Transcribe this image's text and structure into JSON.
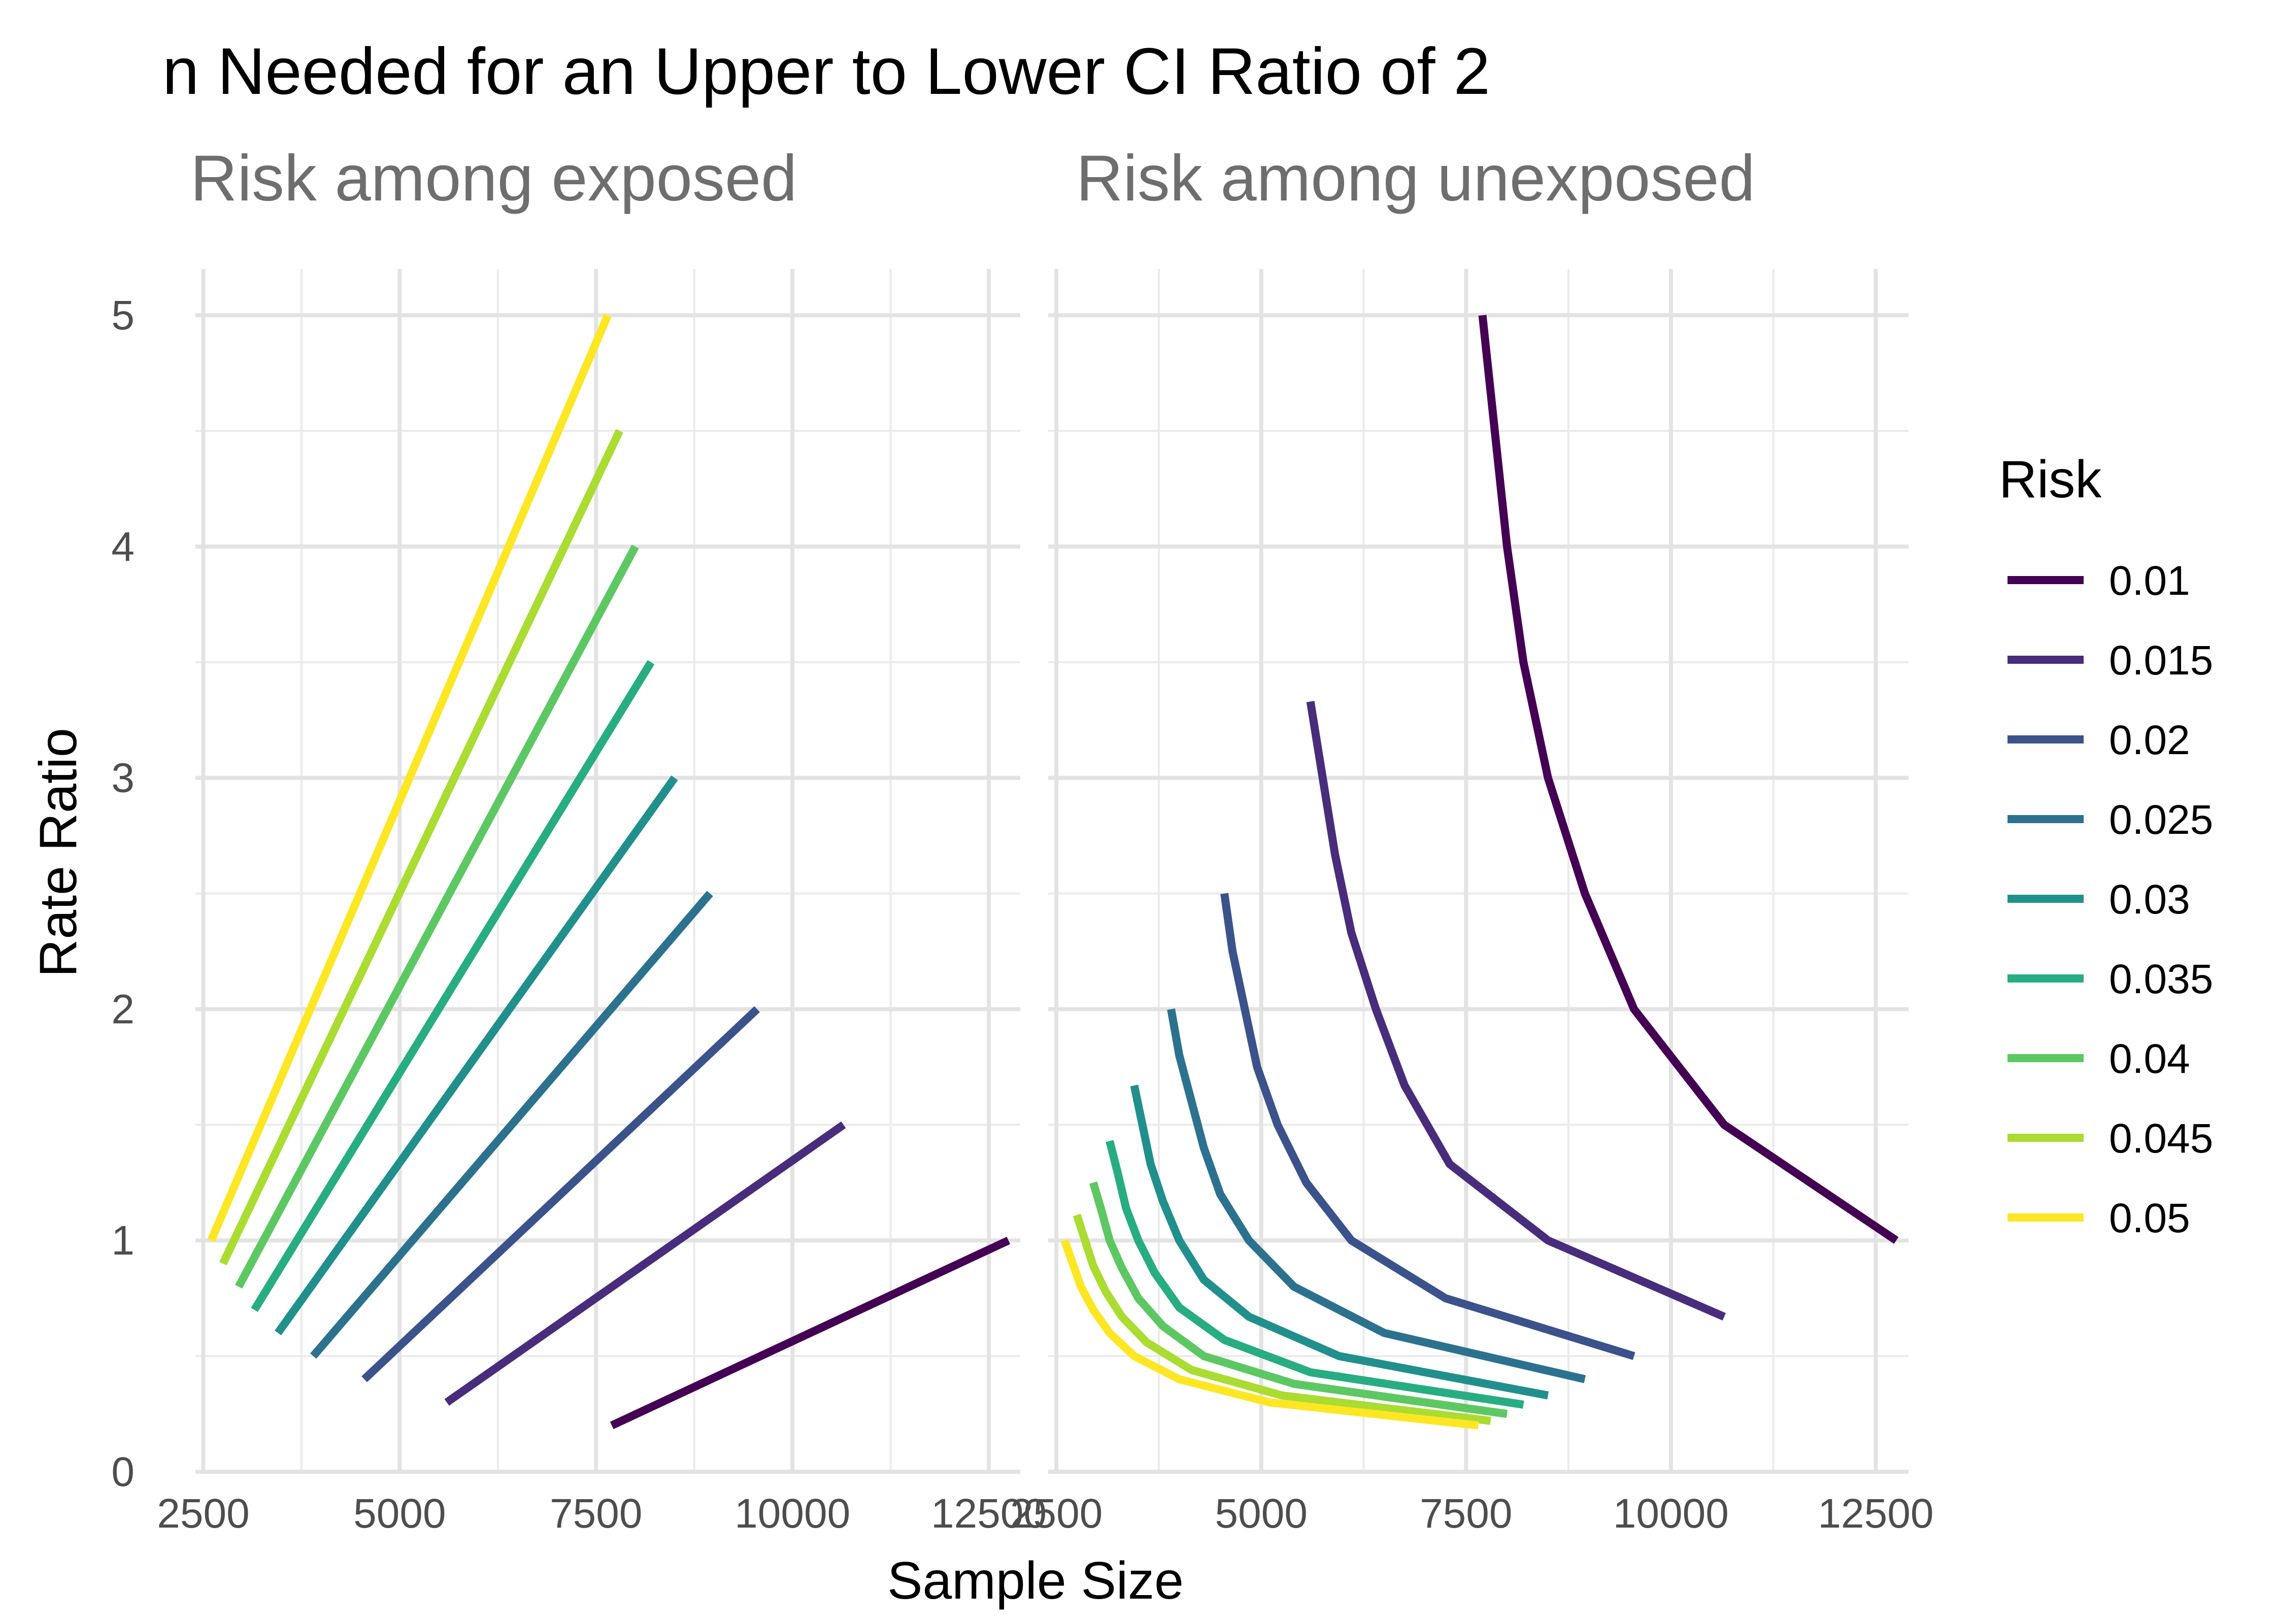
{
  "chart_data": {
    "type": "line",
    "title": "n Needed for an Upper to Lower CI Ratio of 2",
    "xlabel": "Sample Size",
    "ylabel": "Rate Ratio",
    "xlim": [
      2400,
      12900
    ],
    "ylim": [
      0,
      5.2
    ],
    "x_ticks": [
      2500,
      5000,
      7500,
      10000,
      12500
    ],
    "x_tick_labels": [
      "2500",
      "5000",
      "7500",
      "10000",
      "12500"
    ],
    "y_ticks": [
      0,
      1,
      2,
      3,
      4,
      5
    ],
    "y_tick_labels": [
      "0",
      "1",
      "2",
      "3",
      "4",
      "5"
    ],
    "grid": true,
    "legend": {
      "title": "Risk",
      "position": "right",
      "entries": [
        "0.01",
        "0.015",
        "0.02",
        "0.025",
        "0.03",
        "0.035",
        "0.04",
        "0.045",
        "0.05"
      ],
      "colors": [
        "#440154",
        "#472D7B",
        "#3B528B",
        "#2C728E",
        "#21908C",
        "#27AD81",
        "#5DC863",
        "#AADC32",
        "#FDE725"
      ]
    },
    "panels": [
      {
        "name": "Risk among exposed",
        "series": [
          {
            "name": "0.01",
            "points": [
              [
                7700,
                0.2
              ],
              [
                12750,
                1.0
              ]
            ]
          },
          {
            "name": "0.015",
            "points": [
              [
                5600,
                0.3
              ],
              [
                10650,
                1.5
              ]
            ]
          },
          {
            "name": "0.02",
            "points": [
              [
                4550,
                0.4
              ],
              [
                9550,
                2.0
              ]
            ]
          },
          {
            "name": "0.025",
            "points": [
              [
                3900,
                0.5
              ],
              [
                8950,
                2.5
              ]
            ]
          },
          {
            "name": "0.03",
            "points": [
              [
                3450,
                0.6
              ],
              [
                8500,
                3.0
              ]
            ]
          },
          {
            "name": "0.035",
            "points": [
              [
                3150,
                0.7
              ],
              [
                8200,
                3.5
              ]
            ]
          },
          {
            "name": "0.04",
            "points": [
              [
                2950,
                0.8
              ],
              [
                8000,
                4.0
              ]
            ]
          },
          {
            "name": "0.045",
            "points": [
              [
                2750,
                0.9
              ],
              [
                7800,
                4.5
              ]
            ]
          },
          {
            "name": "0.05",
            "points": [
              [
                2600,
                1.0
              ],
              [
                7650,
                5.0
              ]
            ]
          }
        ]
      },
      {
        "name": "Risk among unexposed",
        "series": [
          {
            "name": "0.01",
            "points": [
              [
                7700,
                5.0
              ],
              [
                7850,
                4.5
              ],
              [
                8000,
                4.0
              ],
              [
                8200,
                3.5
              ],
              [
                8500,
                3.0
              ],
              [
                8950,
                2.5
              ],
              [
                9550,
                2.0
              ],
              [
                10650,
                1.5
              ],
              [
                12750,
                1.0
              ]
            ]
          },
          {
            "name": "0.015",
            "points": [
              [
                5600,
                3.33
              ],
              [
                5750,
                3.0
              ],
              [
                5900,
                2.67
              ],
              [
                6100,
                2.33
              ],
              [
                6400,
                2.0
              ],
              [
                6750,
                1.67
              ],
              [
                7300,
                1.33
              ],
              [
                8500,
                1.0
              ],
              [
                10650,
                0.67
              ]
            ]
          },
          {
            "name": "0.02",
            "points": [
              [
                4550,
                2.5
              ],
              [
                4650,
                2.25
              ],
              [
                4800,
                2.0
              ],
              [
                4950,
                1.75
              ],
              [
                5200,
                1.5
              ],
              [
                5550,
                1.25
              ],
              [
                6100,
                1.0
              ],
              [
                7250,
                0.75
              ],
              [
                9550,
                0.5
              ]
            ]
          },
          {
            "name": "0.025",
            "points": [
              [
                3900,
                2.0
              ],
              [
                4000,
                1.8
              ],
              [
                4150,
                1.6
              ],
              [
                4300,
                1.4
              ],
              [
                4500,
                1.2
              ],
              [
                4850,
                1.0
              ],
              [
                5400,
                0.8
              ],
              [
                6500,
                0.6
              ],
              [
                8950,
                0.4
              ]
            ]
          },
          {
            "name": "0.03",
            "points": [
              [
                3450,
                1.67
              ],
              [
                3550,
                1.5
              ],
              [
                3650,
                1.33
              ],
              [
                3800,
                1.17
              ],
              [
                4000,
                1.0
              ],
              [
                4300,
                0.83
              ],
              [
                4850,
                0.67
              ],
              [
                5950,
                0.5
              ],
              [
                8500,
                0.33
              ]
            ]
          },
          {
            "name": "0.035",
            "points": [
              [
                3150,
                1.43
              ],
              [
                3250,
                1.29
              ],
              [
                3350,
                1.14
              ],
              [
                3500,
                1.0
              ],
              [
                3700,
                0.86
              ],
              [
                4000,
                0.71
              ],
              [
                4550,
                0.57
              ],
              [
                5600,
                0.43
              ],
              [
                8200,
                0.29
              ]
            ]
          },
          {
            "name": "0.04",
            "points": [
              [
                2950,
                1.25
              ],
              [
                3050,
                1.13
              ],
              [
                3150,
                1.0
              ],
              [
                3300,
                0.88
              ],
              [
                3500,
                0.75
              ],
              [
                3800,
                0.63
              ],
              [
                4300,
                0.5
              ],
              [
                5400,
                0.38
              ],
              [
                8000,
                0.25
              ]
            ]
          },
          {
            "name": "0.045",
            "points": [
              [
                2750,
                1.11
              ],
              [
                2850,
                1.0
              ],
              [
                2950,
                0.89
              ],
              [
                3100,
                0.78
              ],
              [
                3300,
                0.67
              ],
              [
                3600,
                0.56
              ],
              [
                4150,
                0.44
              ],
              [
                5250,
                0.33
              ],
              [
                7800,
                0.22
              ]
            ]
          },
          {
            "name": "0.05",
            "points": [
              [
                2600,
                1.0
              ],
              [
                2700,
                0.9
              ],
              [
                2800,
                0.8
              ],
              [
                2950,
                0.7
              ],
              [
                3150,
                0.6
              ],
              [
                3450,
                0.5
              ],
              [
                4000,
                0.4
              ],
              [
                5100,
                0.3
              ],
              [
                7650,
                0.2
              ]
            ]
          }
        ]
      }
    ]
  }
}
